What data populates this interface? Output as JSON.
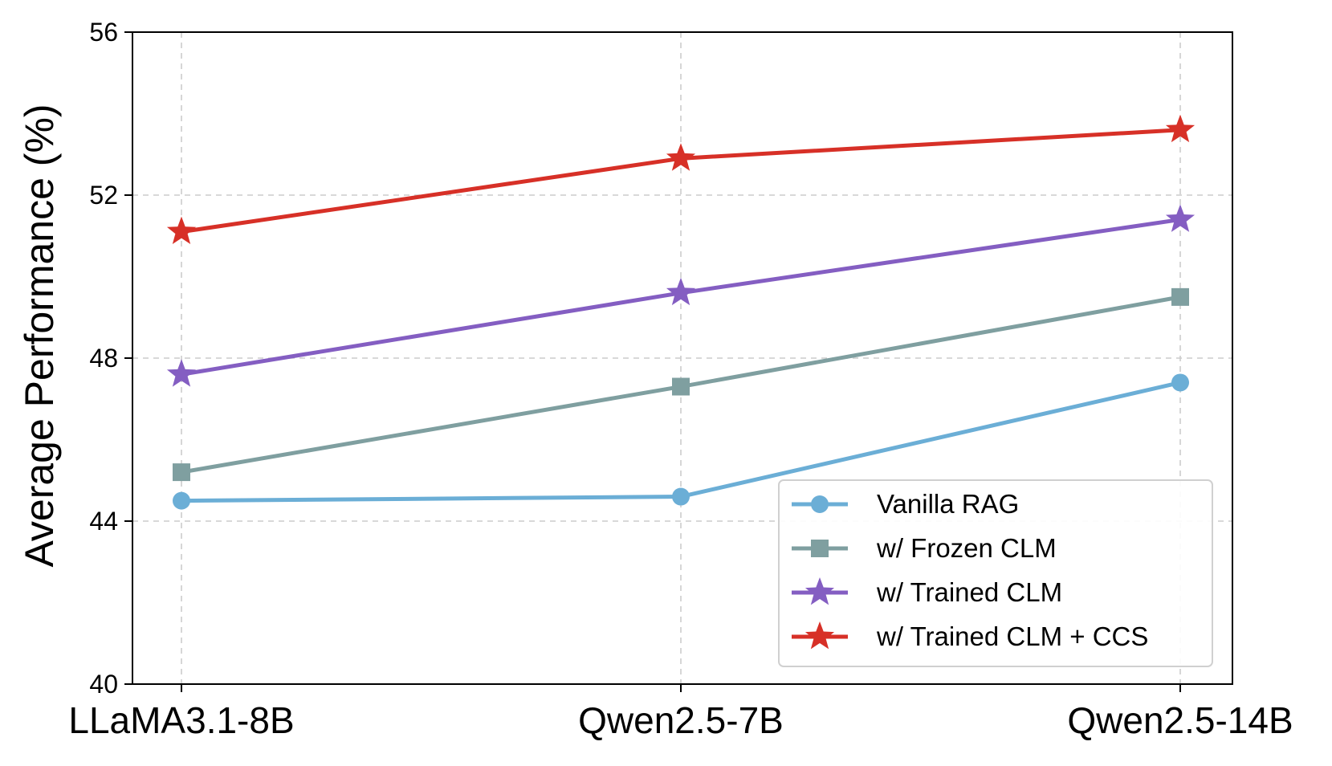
{
  "chart_data": {
    "type": "line",
    "title": "",
    "xlabel": "",
    "ylabel": "Average Performance (%)",
    "categories": [
      "LLaMA3.1-8B",
      "Qwen2.5-7B",
      "Qwen2.5-14B"
    ],
    "ylim": [
      40,
      56
    ],
    "yticks": [
      "40",
      "44",
      "48",
      "52",
      "56"
    ],
    "grid": true,
    "legend_position": "lower-right",
    "series": [
      {
        "name": "Vanilla RAG",
        "values": [
          44.5,
          44.6,
          47.4
        ],
        "color": "#6baed6",
        "marker": "circle"
      },
      {
        "name": "w/ Frozen CLM",
        "values": [
          45.2,
          47.3,
          49.5
        ],
        "color": "#7f9fa0",
        "marker": "square"
      },
      {
        "name": "w/ Trained CLM",
        "values": [
          47.6,
          49.6,
          51.4
        ],
        "color": "#845ec2",
        "marker": "star"
      },
      {
        "name": "w/ Trained CLM + CCS",
        "values": [
          51.1,
          52.9,
          53.6
        ],
        "color": "#d73027",
        "marker": "star"
      }
    ]
  }
}
